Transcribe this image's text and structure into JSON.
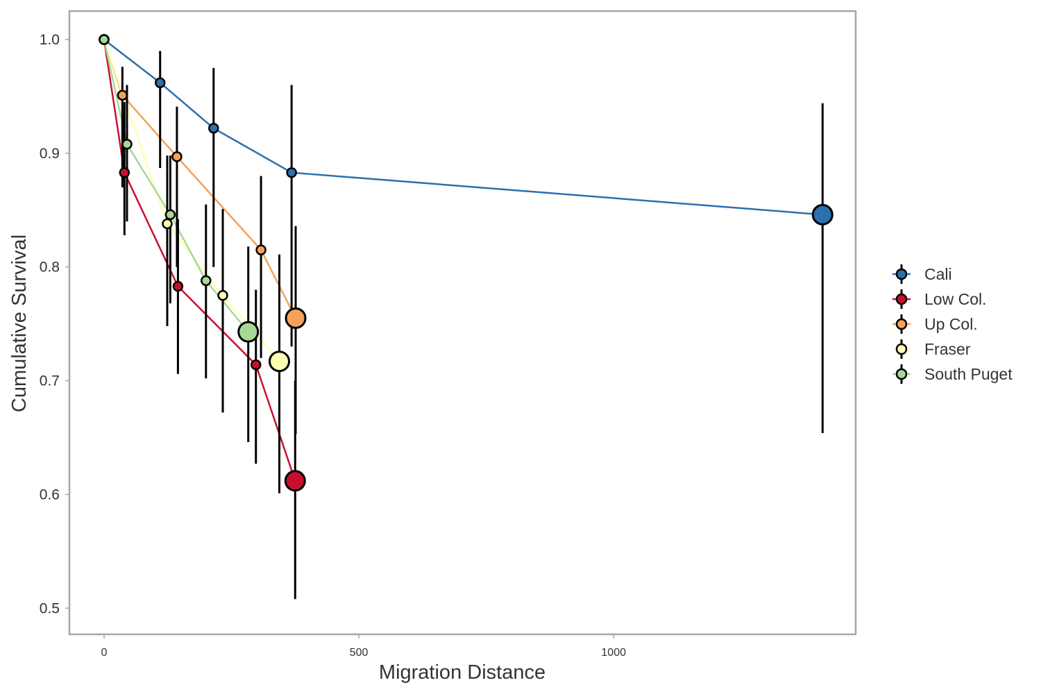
{
  "chart_data": {
    "type": "line",
    "xlabel": "Migration Distance",
    "ylabel": "Cumulative Survival",
    "xlim": [
      -68,
      1475
    ],
    "ylim": [
      0.477,
      1.025
    ],
    "x_ticks": [
      0,
      500,
      1000
    ],
    "y_ticks": [
      0.5,
      0.6,
      0.7,
      0.8,
      0.9,
      1.0
    ],
    "y_tick_labels": [
      "0.5",
      "0.6",
      "0.7",
      "0.8",
      "0.9",
      "1.0"
    ],
    "grid": false,
    "legend_position": "right",
    "series": [
      {
        "name": "Cali",
        "color": "#2c6fad",
        "points": [
          {
            "x": 0,
            "y": 1.0,
            "lo": 1.0,
            "hi": 1.0
          },
          {
            "x": 110,
            "y": 0.962,
            "lo": 0.887,
            "hi": 0.99
          },
          {
            "x": 215,
            "y": 0.922,
            "lo": 0.8,
            "hi": 0.975
          },
          {
            "x": 368,
            "y": 0.883,
            "lo": 0.73,
            "hi": 0.96
          },
          {
            "x": 1410,
            "y": 0.846,
            "lo": 0.654,
            "hi": 0.944
          }
        ]
      },
      {
        "name": "Low Col.",
        "color": "#c8102e",
        "points": [
          {
            "x": 0,
            "y": 1.0,
            "lo": 1.0,
            "hi": 1.0
          },
          {
            "x": 40,
            "y": 0.883,
            "lo": 0.828,
            "hi": 0.945
          },
          {
            "x": 145,
            "y": 0.783,
            "lo": 0.706,
            "hi": 0.842
          },
          {
            "x": 298,
            "y": 0.714,
            "lo": 0.627,
            "hi": 0.78
          },
          {
            "x": 375,
            "y": 0.612,
            "lo": 0.508,
            "hi": 0.7
          }
        ]
      },
      {
        "name": "Up Col.",
        "color": "#f4a259",
        "points": [
          {
            "x": 0,
            "y": 1.0,
            "lo": 1.0,
            "hi": 1.0
          },
          {
            "x": 36,
            "y": 0.951,
            "lo": 0.87,
            "hi": 0.976
          },
          {
            "x": 143,
            "y": 0.897,
            "lo": 0.8,
            "hi": 0.941
          },
          {
            "x": 308,
            "y": 0.815,
            "lo": 0.72,
            "hi": 0.88
          },
          {
            "x": 376,
            "y": 0.755,
            "lo": 0.653,
            "hi": 0.836
          }
        ]
      },
      {
        "name": "Fraser",
        "color": "#ffffb3",
        "points": [
          {
            "x": 0,
            "y": 1.0,
            "lo": 1.0,
            "hi": 1.0
          },
          {
            "x": 124,
            "y": 0.838,
            "lo": 0.748,
            "hi": 0.898
          },
          {
            "x": 233,
            "y": 0.775,
            "lo": 0.672,
            "hi": 0.851
          },
          {
            "x": 344,
            "y": 0.717,
            "lo": 0.601,
            "hi": 0.811
          }
        ]
      },
      {
        "name": "South Puget",
        "color": "#a6d996",
        "points": [
          {
            "x": 0,
            "y": 1.0,
            "lo": 1.0,
            "hi": 1.0
          },
          {
            "x": 45,
            "y": 0.908,
            "lo": 0.84,
            "hi": 0.96
          },
          {
            "x": 130,
            "y": 0.846,
            "lo": 0.768,
            "hi": 0.898
          },
          {
            "x": 200,
            "y": 0.788,
            "lo": 0.702,
            "hi": 0.855
          },
          {
            "x": 283,
            "y": 0.743,
            "lo": 0.646,
            "hi": 0.818
          }
        ]
      }
    ]
  }
}
